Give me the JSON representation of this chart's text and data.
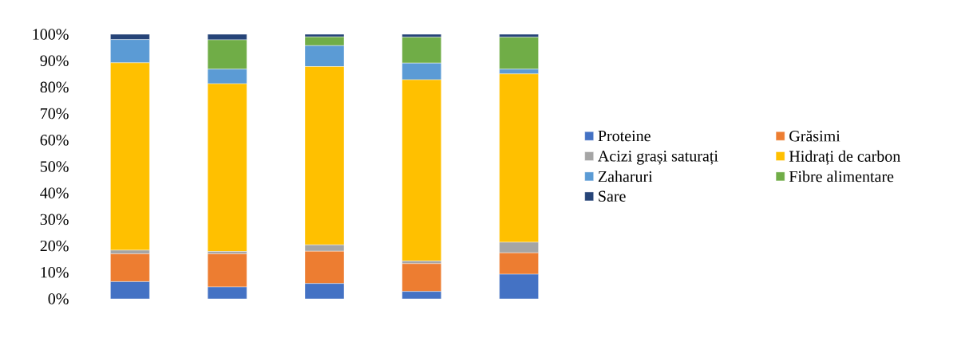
{
  "chart_data": {
    "type": "bar",
    "stacked": true,
    "categories": [
      null,
      null,
      null,
      null,
      null
    ],
    "series": [
      {
        "name": "Proteine",
        "color": "#4472c4",
        "values": [
          6.5,
          4.5,
          5.8,
          2.8,
          9.3
        ]
      },
      {
        "name": "Grăsimi",
        "color": "#ed7d31",
        "values": [
          10.5,
          12.5,
          12.2,
          10.5,
          8.1
        ]
      },
      {
        "name": "Acizi grași saturați",
        "color": "#a5a5a5",
        "values": [
          1.4,
          0.9,
          2.4,
          1.0,
          4.0
        ]
      },
      {
        "name": "Hidrați de carbon",
        "color": "#ffc000",
        "values": [
          70.8,
          63.4,
          67.4,
          68.5,
          63.6
        ]
      },
      {
        "name": "Zaharuri",
        "color": "#5b9bd5",
        "values": [
          8.8,
          5.5,
          7.9,
          6.3,
          1.8
        ]
      },
      {
        "name": "Fibre alimentare",
        "color": "#70ad47",
        "values": [
          0,
          11.1,
          3.3,
          9.8,
          12.1
        ]
      },
      {
        "name": "Sare",
        "color": "#264478",
        "values": [
          2.0,
          2.1,
          1.0,
          1.1,
          1.1
        ]
      }
    ],
    "ylim": [
      0,
      100
    ],
    "yticks": [
      {
        "value": 0,
        "label": "0%"
      },
      {
        "value": 10,
        "label": "10%"
      },
      {
        "value": 20,
        "label": "20%"
      },
      {
        "value": 30,
        "label": "30%"
      },
      {
        "value": 40,
        "label": "40%"
      },
      {
        "value": 50,
        "label": "50%"
      },
      {
        "value": 60,
        "label": "60%"
      },
      {
        "value": 70,
        "label": "70%"
      },
      {
        "value": 80,
        "label": "80%"
      },
      {
        "value": 90,
        "label": "90%"
      },
      {
        "value": 100,
        "label": "100%"
      }
    ],
    "legend": "right"
  }
}
